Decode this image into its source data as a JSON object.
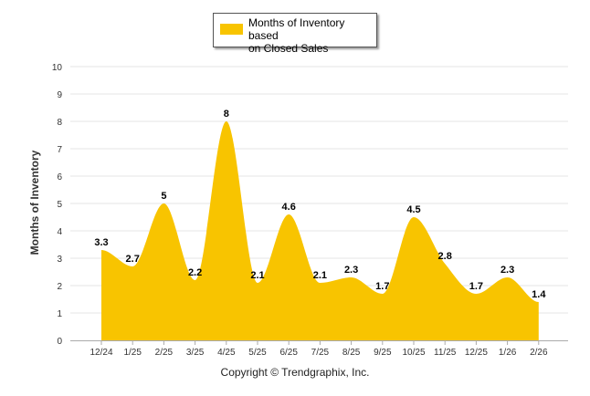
{
  "chart_data": {
    "type": "area",
    "categories": [
      "12/24",
      "1/25",
      "2/25",
      "3/25",
      "4/25",
      "5/25",
      "6/25",
      "7/25",
      "8/25",
      "9/25",
      "10/25",
      "11/25",
      "12/25",
      "1/26",
      "2/26"
    ],
    "series": [
      {
        "name": "Months of Inventory based on Closed Sales",
        "values": [
          3.3,
          2.7,
          5,
          2.2,
          8,
          2.1,
          4.6,
          2.1,
          2.3,
          1.7,
          4.5,
          2.8,
          1.7,
          2.3,
          1.4
        ]
      }
    ],
    "data_labels": [
      "3.3",
      "2.7",
      "5",
      "2.2",
      "8",
      "2.1",
      "4.6",
      "2.1",
      "2.3",
      "1.7",
      "4.5",
      "2.8",
      "1.7",
      "2.3",
      "1.4"
    ],
    "title": "",
    "xlabel": "",
    "ylabel": "Months of Inventory",
    "ylim": [
      0,
      10
    ],
    "yticks": [
      "0",
      "1",
      "2",
      "3",
      "4",
      "5",
      "6",
      "7",
      "8",
      "9",
      "10"
    ],
    "grid": true,
    "legend_position": "top-center",
    "color": "#F8C400"
  },
  "legend": {
    "line1": "Months of Inventory based",
    "line2": "on Closed Sales"
  },
  "footer": {
    "copyright": "Copyright © Trendgraphix, Inc."
  }
}
